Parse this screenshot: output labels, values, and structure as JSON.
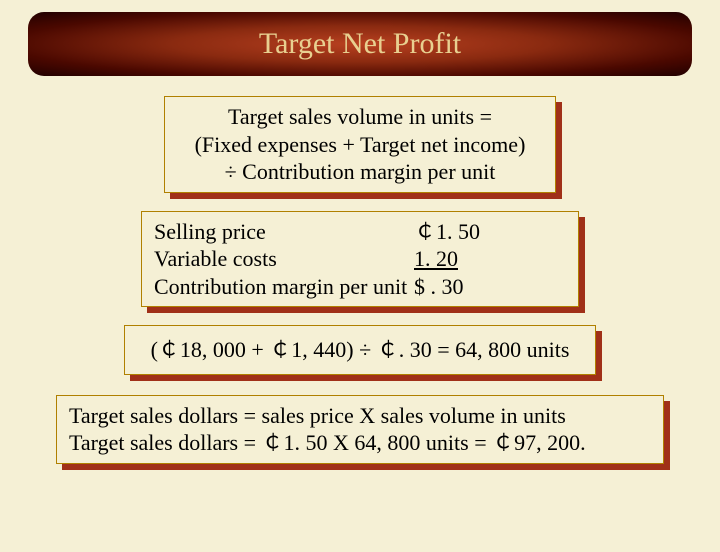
{
  "colors": {
    "page_bg": "#f5f0d5",
    "box_bg": "#f5f0d5",
    "box_border": "#b08000",
    "shadow": "#a03018",
    "title_text": "#e8d090",
    "title_gradient_inner": "#b84020",
    "title_gradient_mid": "#8a2a10",
    "title_gradient_outer": "#200000",
    "text": "#000000"
  },
  "typography": {
    "title_fontsize": 30,
    "body_fontsize": 22,
    "font_family": "Times New Roman"
  },
  "title": "Target Net Profit",
  "formula": {
    "line1": "Target sales volume in units =",
    "line2": "(Fixed expenses + Target net income)",
    "line3": "÷ Contribution margin per unit"
  },
  "table": {
    "rows": [
      {
        "label": "Selling price",
        "value": "￠1. 50"
      },
      {
        "label": "Variable costs",
        "value": " 1. 20",
        "underline": true
      },
      {
        "label": "Contribution margin per unit",
        "value": "$ . 30"
      }
    ]
  },
  "calc": "(￠18, 000 + ￠1, 440) ÷ ￠. 30 = 64, 800 units",
  "result": {
    "line1": "Target sales dollars = sales price X sales volume in units",
    "line2": "Target sales dollars = ￠1. 50 X 64, 800 units = ￠97, 200."
  }
}
